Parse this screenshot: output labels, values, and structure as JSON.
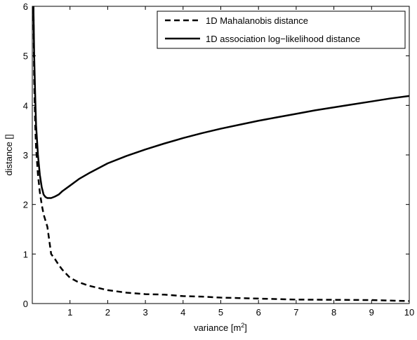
{
  "chart_data": {
    "type": "line",
    "title": "",
    "xlabel": "variance [m",
    "xlabel_superscript": "2",
    "xlabel_suffix": "]",
    "ylabel": "distance []",
    "xlim": [
      0,
      10
    ],
    "ylim": [
      0,
      6
    ],
    "x_ticks": [
      1,
      2,
      3,
      4,
      5,
      6,
      7,
      8,
      9,
      10
    ],
    "y_ticks": [
      0,
      1,
      2,
      3,
      4,
      5,
      6
    ],
    "grid": false,
    "legend_position": "top-right",
    "series": [
      {
        "name": "1D Mahalanobis distance",
        "style": "dashed",
        "color": "#000000",
        "points": [
          [
            0.03,
            6.0
          ],
          [
            0.05,
            4.5
          ],
          [
            0.08,
            3.55
          ],
          [
            0.1,
            3.15
          ],
          [
            0.15,
            2.6
          ],
          [
            0.2,
            2.25
          ],
          [
            0.25,
            2.0
          ],
          [
            0.3,
            1.8
          ],
          [
            0.4,
            1.55
          ],
          [
            0.5,
            1.0
          ],
          [
            0.6,
            0.9
          ],
          [
            0.7,
            0.78
          ],
          [
            0.8,
            0.68
          ],
          [
            1.0,
            0.52
          ],
          [
            1.2,
            0.44
          ],
          [
            1.5,
            0.36
          ],
          [
            2.0,
            0.27
          ],
          [
            2.5,
            0.22
          ],
          [
            3.0,
            0.19
          ],
          [
            3.5,
            0.18
          ],
          [
            4.0,
            0.15
          ],
          [
            4.5,
            0.14
          ],
          [
            5.0,
            0.12
          ],
          [
            5.5,
            0.11
          ],
          [
            6.0,
            0.1
          ],
          [
            7.0,
            0.08
          ],
          [
            8.0,
            0.075
          ],
          [
            9.0,
            0.07
          ],
          [
            9.5,
            0.06
          ],
          [
            10.0,
            0.05
          ]
        ]
      },
      {
        "name": "1D association log−likelihood distance",
        "style": "solid",
        "color": "#000000",
        "points": [
          [
            0.03,
            6.0
          ],
          [
            0.05,
            5.0
          ],
          [
            0.08,
            4.1
          ],
          [
            0.1,
            3.6
          ],
          [
            0.15,
            3.0
          ],
          [
            0.2,
            2.6
          ],
          [
            0.25,
            2.35
          ],
          [
            0.3,
            2.2
          ],
          [
            0.35,
            2.15
          ],
          [
            0.4,
            2.13
          ],
          [
            0.5,
            2.13
          ],
          [
            0.6,
            2.16
          ],
          [
            0.7,
            2.2
          ],
          [
            0.8,
            2.27
          ],
          [
            1.0,
            2.38
          ],
          [
            1.25,
            2.52
          ],
          [
            1.5,
            2.63
          ],
          [
            2.0,
            2.83
          ],
          [
            2.5,
            2.98
          ],
          [
            3.0,
            3.11
          ],
          [
            3.5,
            3.23
          ],
          [
            4.0,
            3.34
          ],
          [
            4.5,
            3.44
          ],
          [
            5.0,
            3.53
          ],
          [
            5.5,
            3.61
          ],
          [
            6.0,
            3.69
          ],
          [
            6.5,
            3.76
          ],
          [
            7.0,
            3.83
          ],
          [
            7.5,
            3.9
          ],
          [
            8.0,
            3.96
          ],
          [
            8.5,
            4.02
          ],
          [
            9.0,
            4.08
          ],
          [
            9.5,
            4.14
          ],
          [
            10.0,
            4.19
          ]
        ]
      }
    ]
  }
}
